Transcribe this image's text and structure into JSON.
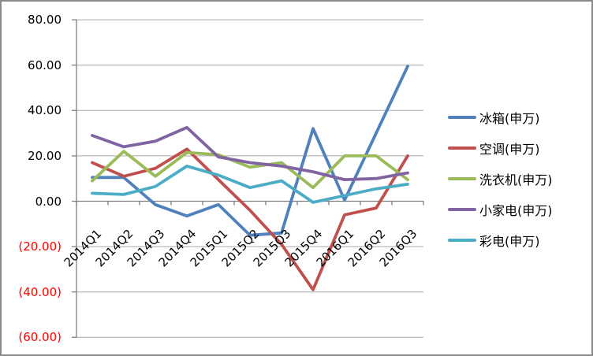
{
  "chart_data": {
    "type": "line",
    "title": "",
    "categories": [
      "2014Q1",
      "2014Q2",
      "2014Q3",
      "2014Q4",
      "2015Q1",
      "2015Q2",
      "2015Q3",
      "2015Q4",
      "2016Q1",
      "2016Q2",
      "2016Q3"
    ],
    "series": [
      {
        "name": "冰箱(申万)",
        "color": "#4F81BD",
        "values": [
          10.5,
          10.5,
          -1.5,
          -6.5,
          -1.5,
          -15,
          -14,
          32,
          0.5,
          30,
          59.5
        ]
      },
      {
        "name": "空调(申万)",
        "color": "#C0504D",
        "values": [
          17,
          11,
          14.5,
          23,
          9.5,
          -4,
          -19,
          -39,
          -6,
          -3,
          20
        ]
      },
      {
        "name": "洗衣机(申万)",
        "color": "#9BBB59",
        "values": [
          9,
          22,
          11,
          21.5,
          20.5,
          15,
          17,
          6,
          20,
          20,
          9.5
        ]
      },
      {
        "name": "小家电(申万)",
        "color": "#8064A2",
        "values": [
          29,
          24,
          26.5,
          32.5,
          19.5,
          17,
          15.5,
          13,
          9.5,
          10,
          12.5
        ]
      },
      {
        "name": "彩电(申万)",
        "color": "#4BACC6",
        "values": [
          3.5,
          3,
          6.5,
          15.5,
          11.5,
          6,
          9,
          -0.5,
          2.5,
          5.5,
          7.5
        ]
      }
    ],
    "ylim": [
      -60,
      80
    ],
    "ytick_step": 20,
    "yticks": [
      {
        "value": 80,
        "label": "80.00",
        "negative": false
      },
      {
        "value": 60,
        "label": "60.00",
        "negative": false
      },
      {
        "value": 40,
        "label": "40.00",
        "negative": false
      },
      {
        "value": 20,
        "label": "20.00",
        "negative": false
      },
      {
        "value": 0,
        "label": "0.00",
        "negative": false
      },
      {
        "value": -20,
        "label": "(20.00)",
        "negative": true
      },
      {
        "value": -40,
        "label": "(40.00)",
        "negative": true
      },
      {
        "value": -60,
        "label": "(60.00)",
        "negative": true
      }
    ],
    "negative_label_color": "#FF0000",
    "grid": true,
    "grid_color": "#A6A6A6",
    "axis_color": "#808080",
    "legend_position": "right",
    "x_label_rotation": -45
  }
}
